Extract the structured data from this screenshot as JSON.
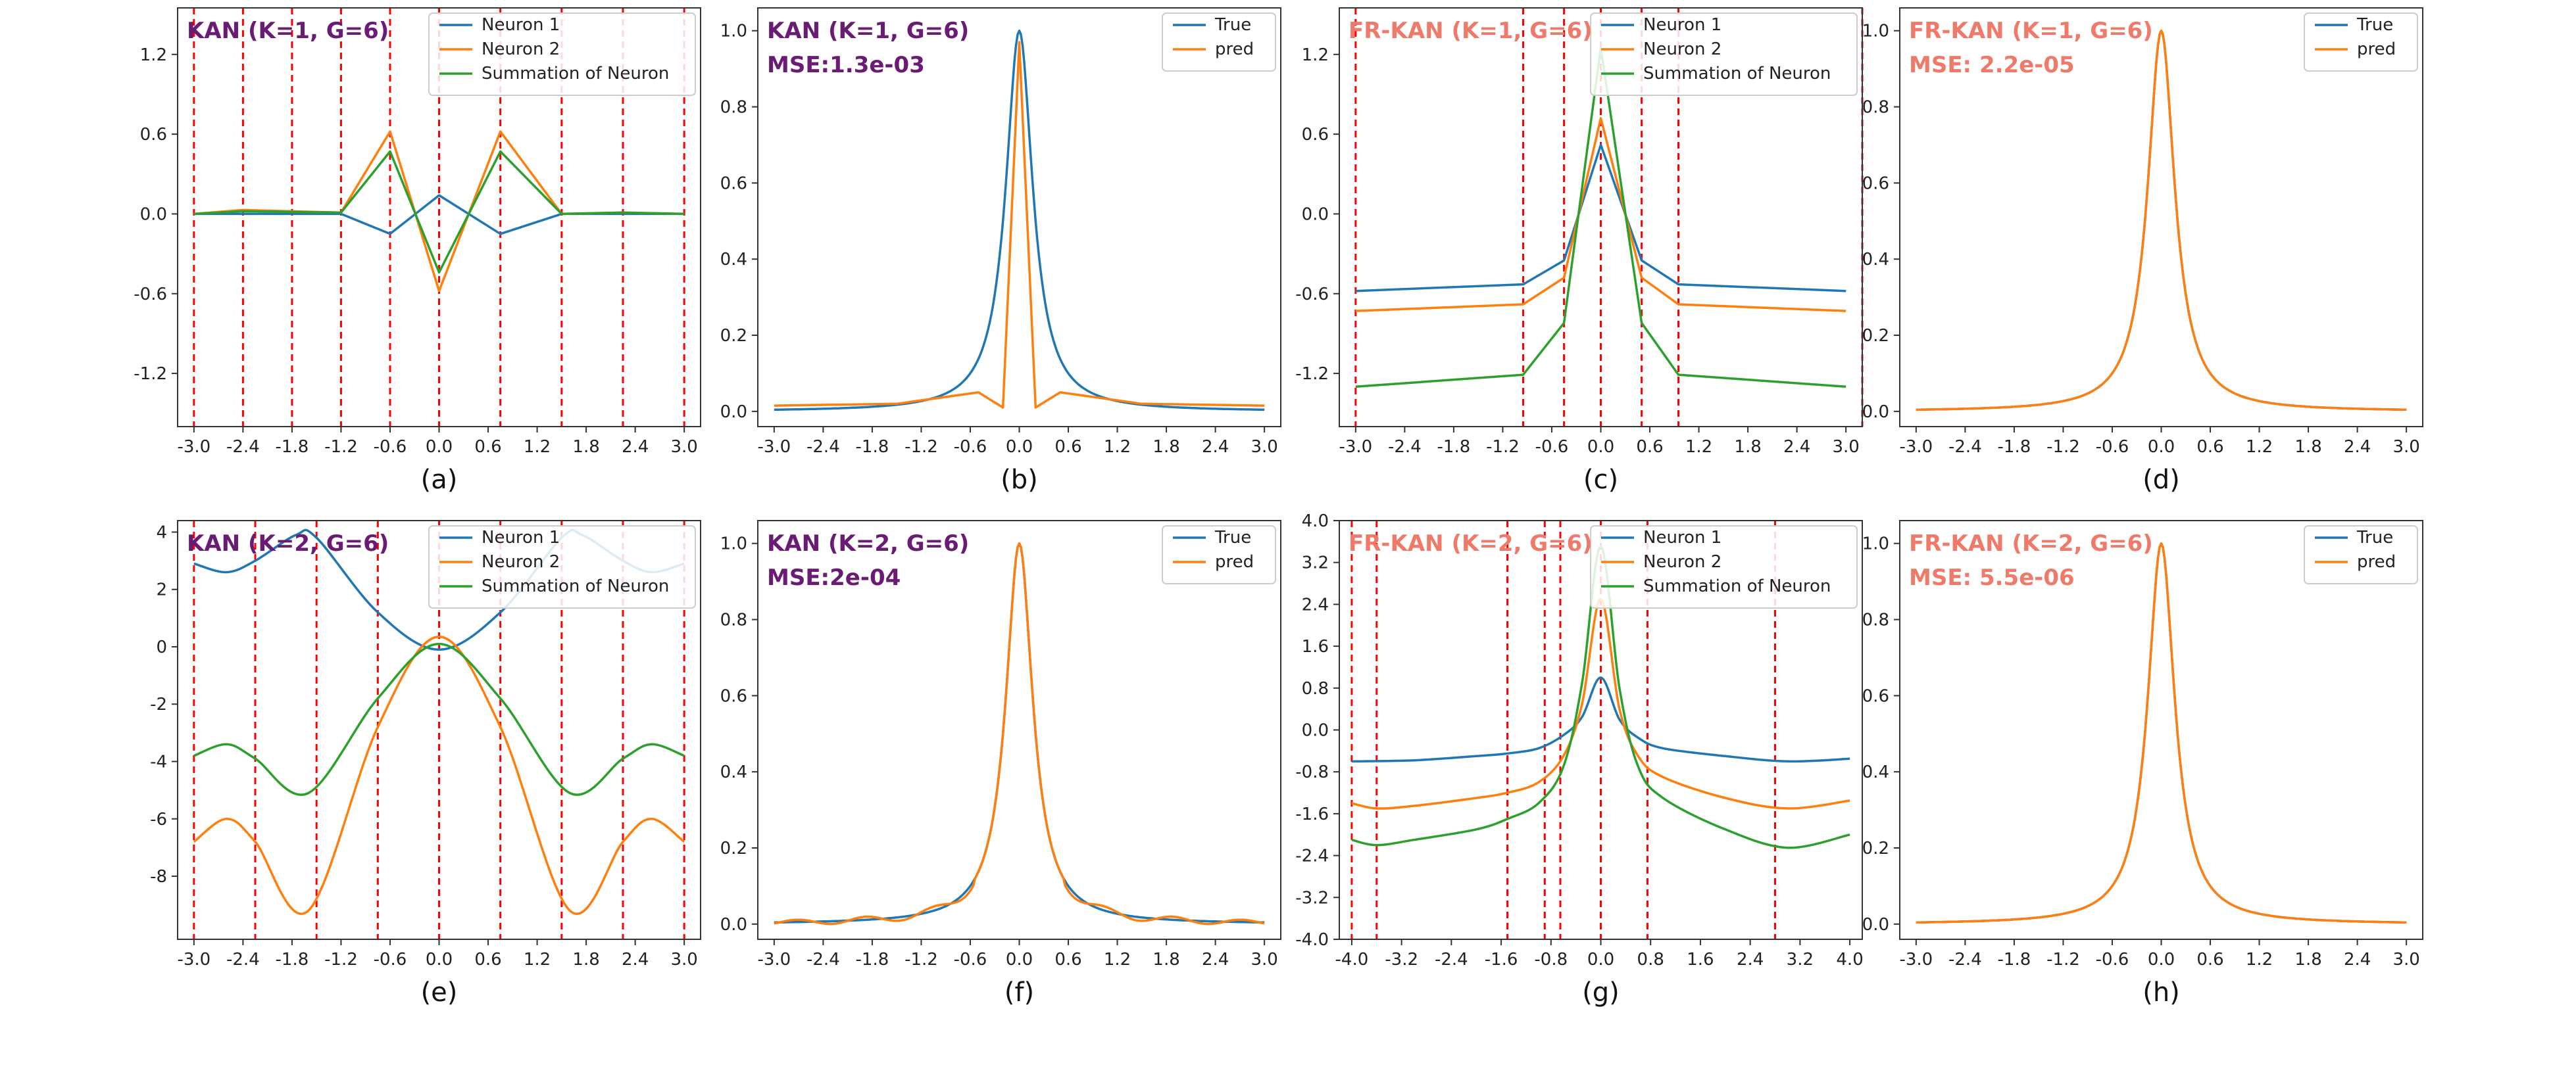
{
  "colors": {
    "neuron1": "#1f77b4",
    "neuron2": "#ff7f0e",
    "sum": "#2ca02c",
    "grid": "#ff0000",
    "kan_title": "#6a1b74",
    "frkan_title": "#f07a6a"
  },
  "chart_data": [
    {
      "type": "line",
      "label": "(a)",
      "title": "KAN (K=1, G=6)",
      "subtitle": "",
      "title_style": "kan",
      "xlim": [
        -3.2,
        3.2
      ],
      "ylim": [
        -1.6,
        1.55
      ],
      "xticks": [
        "-3.0",
        "-2.4",
        "-1.8",
        "-1.2",
        "-0.6",
        "0.0",
        "0.6",
        "1.2",
        "1.8",
        "2.4",
        "3.0"
      ],
      "yticks": [
        "-1.2",
        "-0.6",
        "0.0",
        "0.6",
        "1.2"
      ],
      "grid_lines": [
        -3,
        -2.4,
        -1.8,
        -1.2,
        -0.6,
        0,
        0.75,
        1.5,
        2.25,
        3
      ],
      "legend": [
        "Neuron 1",
        "Neuron 2",
        "Summation of Neuron"
      ],
      "series": [
        {
          "name": "Neuron 1",
          "color_key": "neuron1",
          "x": [
            -3,
            -2.4,
            -1.2,
            -0.6,
            0,
            0.75,
            1.5,
            2.25,
            3
          ],
          "y": [
            0,
            0,
            0,
            -0.15,
            0.14,
            -0.15,
            0,
            0,
            0
          ]
        },
        {
          "name": "Neuron 2",
          "color_key": "neuron2",
          "x": [
            -3,
            -2.4,
            -1.2,
            -0.6,
            0,
            0.75,
            1.5,
            2.25,
            3
          ],
          "y": [
            0,
            0.03,
            0.01,
            0.62,
            -0.58,
            0.62,
            0,
            0.01,
            0
          ]
        },
        {
          "name": "Summation of Neuron",
          "color_key": "sum",
          "x": [
            -3,
            -2.4,
            -1.2,
            -0.6,
            0,
            0.75,
            1.5,
            2.25,
            3
          ],
          "y": [
            0,
            0.02,
            0.01,
            0.47,
            -0.44,
            0.47,
            0,
            0.01,
            0
          ]
        }
      ]
    },
    {
      "type": "line",
      "label": "(b)",
      "title": "KAN (K=1, G=6)",
      "subtitle": "MSE:1.3e-03",
      "title_style": "kan",
      "xlim": [
        -3.2,
        3.2
      ],
      "ylim": [
        -0.04,
        1.06
      ],
      "xticks": [
        "-3.0",
        "-2.4",
        "-1.8",
        "-1.2",
        "-0.6",
        "0.0",
        "0.6",
        "1.2",
        "1.8",
        "2.4",
        "3.0"
      ],
      "yticks": [
        "0.0",
        "0.2",
        "0.4",
        "0.6",
        "0.8",
        "1.0"
      ],
      "grid_lines": [],
      "legend": [
        "True",
        "pred"
      ],
      "series": [
        {
          "name": "True",
          "color_key": "neuron1",
          "fn": "lorentz"
        },
        {
          "name": "pred",
          "color_key": "neuron2",
          "x": [
            -3,
            -1.5,
            -0.5,
            -0.2,
            0,
            0.2,
            0.5,
            1.5,
            3
          ],
          "y": [
            0.015,
            0.02,
            0.05,
            0.01,
            0.97,
            0.01,
            0.05,
            0.02,
            0.015
          ]
        }
      ]
    },
    {
      "type": "line",
      "label": "(c)",
      "title": "FR-KAN (K=1, G=6)",
      "subtitle": "",
      "title_style": "frkan",
      "xlim": [
        -3.2,
        3.2
      ],
      "ylim": [
        -1.6,
        1.55
      ],
      "xticks": [
        "-3.0",
        "-2.4",
        "-1.8",
        "-1.2",
        "-0.6",
        "0.0",
        "0.6",
        "1.2",
        "1.8",
        "2.4",
        "3.0"
      ],
      "yticks": [
        "-1.2",
        "-0.6",
        "0.0",
        "0.6",
        "1.2"
      ],
      "grid_lines": [
        -3,
        -0.95,
        -0.45,
        0,
        0.5,
        0.95,
        3.2
      ],
      "legend": [
        "Neuron 1",
        "Neuron 2",
        "Summation of Neuron"
      ],
      "series": [
        {
          "name": "Neuron 1",
          "color_key": "neuron1",
          "x": [
            -3,
            -0.95,
            -0.45,
            0,
            0.5,
            0.95,
            3
          ],
          "y": [
            -0.58,
            -0.53,
            -0.35,
            0.52,
            -0.35,
            -0.53,
            -0.58
          ]
        },
        {
          "name": "Neuron 2",
          "color_key": "neuron2",
          "x": [
            -3,
            -0.95,
            -0.45,
            0,
            0.5,
            0.95,
            3
          ],
          "y": [
            -0.73,
            -0.68,
            -0.48,
            0.72,
            -0.48,
            -0.68,
            -0.73
          ]
        },
        {
          "name": "Summation of Neuron",
          "color_key": "sum",
          "x": [
            -3,
            -0.95,
            -0.45,
            0,
            0.5,
            0.95,
            3
          ],
          "y": [
            -1.3,
            -1.21,
            -0.82,
            1.25,
            -0.82,
            -1.21,
            -1.3
          ]
        }
      ]
    },
    {
      "type": "line",
      "label": "(d)",
      "title": "FR-KAN (K=1, G=6)",
      "subtitle": "MSE: 2.2e-05",
      "title_style": "frkan",
      "xlim": [
        -3.2,
        3.2
      ],
      "ylim": [
        -0.04,
        1.06
      ],
      "xticks": [
        "-3.0",
        "-2.4",
        "-1.8",
        "-1.2",
        "-0.6",
        "0.0",
        "0.6",
        "1.2",
        "1.8",
        "2.4",
        "3.0"
      ],
      "yticks": [
        "0.0",
        "0.2",
        "0.4",
        "0.6",
        "0.8",
        "1.0"
      ],
      "grid_lines": [],
      "legend": [
        "True",
        "pred"
      ],
      "series": [
        {
          "name": "True",
          "color_key": "neuron1",
          "fn": "lorentz"
        },
        {
          "name": "pred",
          "color_key": "neuron2",
          "fn": "lorentz"
        }
      ]
    },
    {
      "type": "line",
      "label": "(e)",
      "title": "KAN (K=2, G=6)",
      "subtitle": "",
      "title_style": "kan",
      "xlim": [
        -3.2,
        3.2
      ],
      "ylim": [
        -10.2,
        4.4
      ],
      "xticks": [
        "-3.0",
        "-2.4",
        "-1.8",
        "-1.2",
        "-0.6",
        "0.0",
        "0.6",
        "1.2",
        "1.8",
        "2.4",
        "3.0"
      ],
      "yticks": [
        "-8",
        "-6",
        "-4",
        "-2",
        "0",
        "2",
        "4"
      ],
      "grid_lines": [
        -3,
        -2.25,
        -1.5,
        -0.75,
        0,
        0.75,
        1.5,
        2.25,
        3
      ],
      "legend": [
        "Neuron 1",
        "Neuron 2",
        "Summation of Neuron"
      ],
      "series": [
        {
          "name": "Neuron 1",
          "color_key": "neuron1",
          "x": [
            -3,
            -2.6,
            -2.25,
            -1.75,
            -1.5,
            -0.75,
            0,
            0.75,
            1.5,
            1.75,
            2.25,
            2.6,
            3
          ],
          "y": [
            2.9,
            2.6,
            3.0,
            3.9,
            3.8,
            1.2,
            -0.1,
            1.2,
            3.8,
            3.9,
            3.0,
            2.6,
            2.9
          ],
          "smooth": true
        },
        {
          "name": "Neuron 2",
          "color_key": "neuron2",
          "x": [
            -3,
            -2.6,
            -2.25,
            -1.6,
            -0.75,
            0,
            0.75,
            1.6,
            2.25,
            2.6,
            3
          ],
          "y": [
            -6.8,
            -6.0,
            -6.8,
            -9.2,
            -2.8,
            0.35,
            -2.8,
            -9.2,
            -6.8,
            -6.0,
            -6.8
          ],
          "smooth": true
        },
        {
          "name": "Summation of Neuron",
          "color_key": "sum",
          "x": [
            -3,
            -2.6,
            -2.25,
            -1.6,
            -0.75,
            0,
            0.75,
            1.6,
            2.25,
            2.6,
            3
          ],
          "y": [
            -3.8,
            -3.4,
            -3.9,
            -5.1,
            -1.8,
            0.1,
            -1.8,
            -5.1,
            -3.9,
            -3.4,
            -3.8
          ],
          "smooth": true
        }
      ]
    },
    {
      "type": "line",
      "label": "(f)",
      "title": "KAN (K=2, G=6)",
      "subtitle": "MSE:2e-04",
      "title_style": "kan",
      "xlim": [
        -3.2,
        3.2
      ],
      "ylim": [
        -0.04,
        1.06
      ],
      "xticks": [
        "-3.0",
        "-2.4",
        "-1.8",
        "-1.2",
        "-0.6",
        "0.0",
        "0.6",
        "1.2",
        "1.8",
        "2.4",
        "3.0"
      ],
      "yticks": [
        "0.0",
        "0.2",
        "0.4",
        "0.6",
        "0.8",
        "1.0"
      ],
      "grid_lines": [],
      "legend": [
        "True",
        "pred"
      ],
      "series": [
        {
          "name": "True",
          "color_key": "neuron1",
          "fn": "lorentz"
        },
        {
          "name": "pred",
          "color_key": "neuron2",
          "fn": "lorentz_wobble"
        }
      ]
    },
    {
      "type": "line",
      "label": "(g)",
      "title": "FR-KAN (K=2, G=6)",
      "subtitle": "",
      "title_style": "frkan",
      "xlim": [
        -4.2,
        4.2
      ],
      "ylim": [
        -4.0,
        4.0
      ],
      "xticks": [
        "-4.0",
        "-3.2",
        "-2.4",
        "-1.6",
        "-0.8",
        "0.0",
        "0.8",
        "1.6",
        "2.4",
        "3.2",
        "4.0"
      ],
      "yticks": [
        "-4.0",
        "-3.2",
        "-2.4",
        "-1.6",
        "-0.8",
        "0.0",
        "0.8",
        "1.6",
        "2.4",
        "3.2",
        "4.0"
      ],
      "grid_lines": [
        -4,
        -3.6,
        -1.5,
        -0.9,
        -0.65,
        0,
        0.75,
        2.8
      ],
      "legend": [
        "Neuron 1",
        "Neuron 2",
        "Summation of Neuron"
      ],
      "series": [
        {
          "name": "Neuron 1",
          "color_key": "neuron1",
          "x": [
            -4,
            -3,
            -2,
            -1.5,
            -1,
            -0.6,
            -0.3,
            0,
            0.3,
            0.6,
            1,
            2,
            3,
            4
          ],
          "y": [
            -0.6,
            -0.58,
            -0.5,
            -0.45,
            -0.35,
            -0.1,
            0.25,
            1.0,
            0.2,
            -0.15,
            -0.35,
            -0.5,
            -0.6,
            -0.55
          ],
          "smooth": true
        },
        {
          "name": "Neuron 2",
          "color_key": "neuron2",
          "x": [
            -4,
            -3.6,
            -3,
            -2,
            -1.5,
            -1,
            -0.6,
            -0.3,
            0,
            0.3,
            0.6,
            1,
            2,
            3,
            4
          ],
          "y": [
            -1.4,
            -1.5,
            -1.45,
            -1.3,
            -1.2,
            -1.0,
            -0.5,
            0.5,
            2.5,
            0.4,
            -0.5,
            -0.9,
            -1.3,
            -1.5,
            -1.35
          ],
          "smooth": true
        },
        {
          "name": "Summation of Neuron",
          "color_key": "sum",
          "x": [
            -4,
            -3.6,
            -3,
            -2,
            -1.5,
            -1,
            -0.6,
            -0.3,
            0,
            0.3,
            0.6,
            1,
            2,
            3,
            4
          ],
          "y": [
            -2.1,
            -2.2,
            -2.1,
            -1.9,
            -1.7,
            -1.4,
            -0.7,
            0.9,
            3.5,
            0.8,
            -0.7,
            -1.3,
            -1.9,
            -2.25,
            -2.0
          ],
          "smooth": true
        }
      ]
    },
    {
      "type": "line",
      "label": "(h)",
      "title": "FR-KAN (K=2, G=6)",
      "subtitle": "MSE: 5.5e-06",
      "title_style": "frkan",
      "xlim": [
        -3.2,
        3.2
      ],
      "ylim": [
        -0.04,
        1.06
      ],
      "xticks": [
        "-3.0",
        "-2.4",
        "-1.8",
        "-1.2",
        "-0.6",
        "0.0",
        "0.6",
        "1.2",
        "1.8",
        "2.4",
        "3.0"
      ],
      "yticks": [
        "0.0",
        "0.2",
        "0.4",
        "0.6",
        "0.8",
        "1.0"
      ],
      "grid_lines": [],
      "legend": [
        "True",
        "pred"
      ],
      "series": [
        {
          "name": "True",
          "color_key": "neuron1",
          "fn": "lorentz"
        },
        {
          "name": "pred",
          "color_key": "neuron2",
          "fn": "lorentz"
        }
      ]
    }
  ]
}
